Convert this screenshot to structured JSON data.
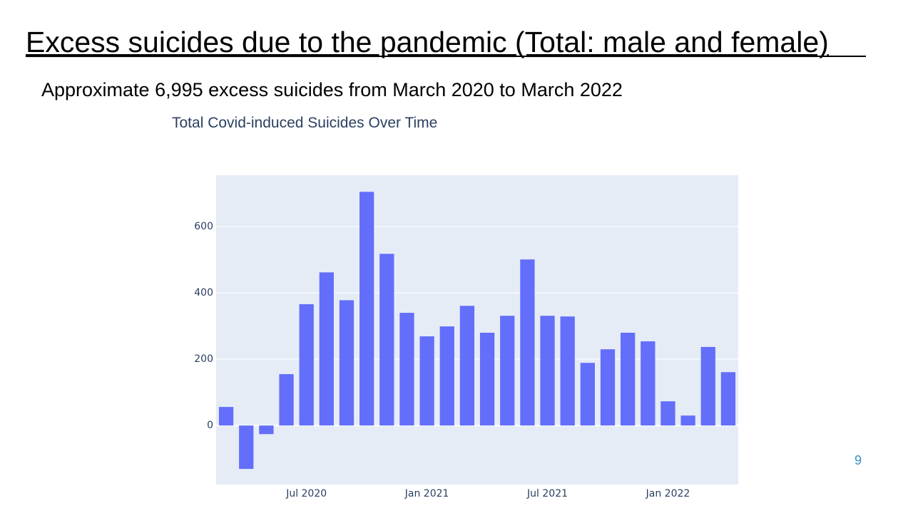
{
  "slide": {
    "title": "Excess suicides due to the pandemic (Total: male and female)",
    "subtitle": "Approximate 6,995 excess suicides from March 2020 to March 2022",
    "page_number": "9"
  },
  "chart_data": {
    "type": "bar",
    "title": "Total Covid-induced Suicides Over Time",
    "color": "#636efa",
    "grid": true,
    "x": [
      "2020-03",
      "2020-04",
      "2020-05",
      "2020-06",
      "2020-07",
      "2020-08",
      "2020-09",
      "2020-10",
      "2020-11",
      "2020-12",
      "2021-01",
      "2021-02",
      "2021-03",
      "2021-04",
      "2021-05",
      "2021-06",
      "2021-07",
      "2021-08",
      "2021-09",
      "2021-10",
      "2021-11",
      "2021-12",
      "2022-01",
      "2022-02",
      "2022-03",
      "2022-04"
    ],
    "values": [
      56,
      -131,
      -26,
      155,
      366,
      462,
      378,
      705,
      518,
      340,
      269,
      299,
      361,
      280,
      331,
      501,
      331,
      329,
      189,
      230,
      280,
      254,
      73,
      30,
      237,
      161
    ],
    "ylim": [
      -178,
      755
    ],
    "yticks": [
      0,
      200,
      400,
      600
    ],
    "xticks": [
      {
        "value": "2020-07",
        "label": "Jul 2020"
      },
      {
        "value": "2021-01",
        "label": "Jan 2021"
      },
      {
        "value": "2021-07",
        "label": "Jul 2021"
      },
      {
        "value": "2022-01",
        "label": "Jan 2022"
      }
    ]
  }
}
